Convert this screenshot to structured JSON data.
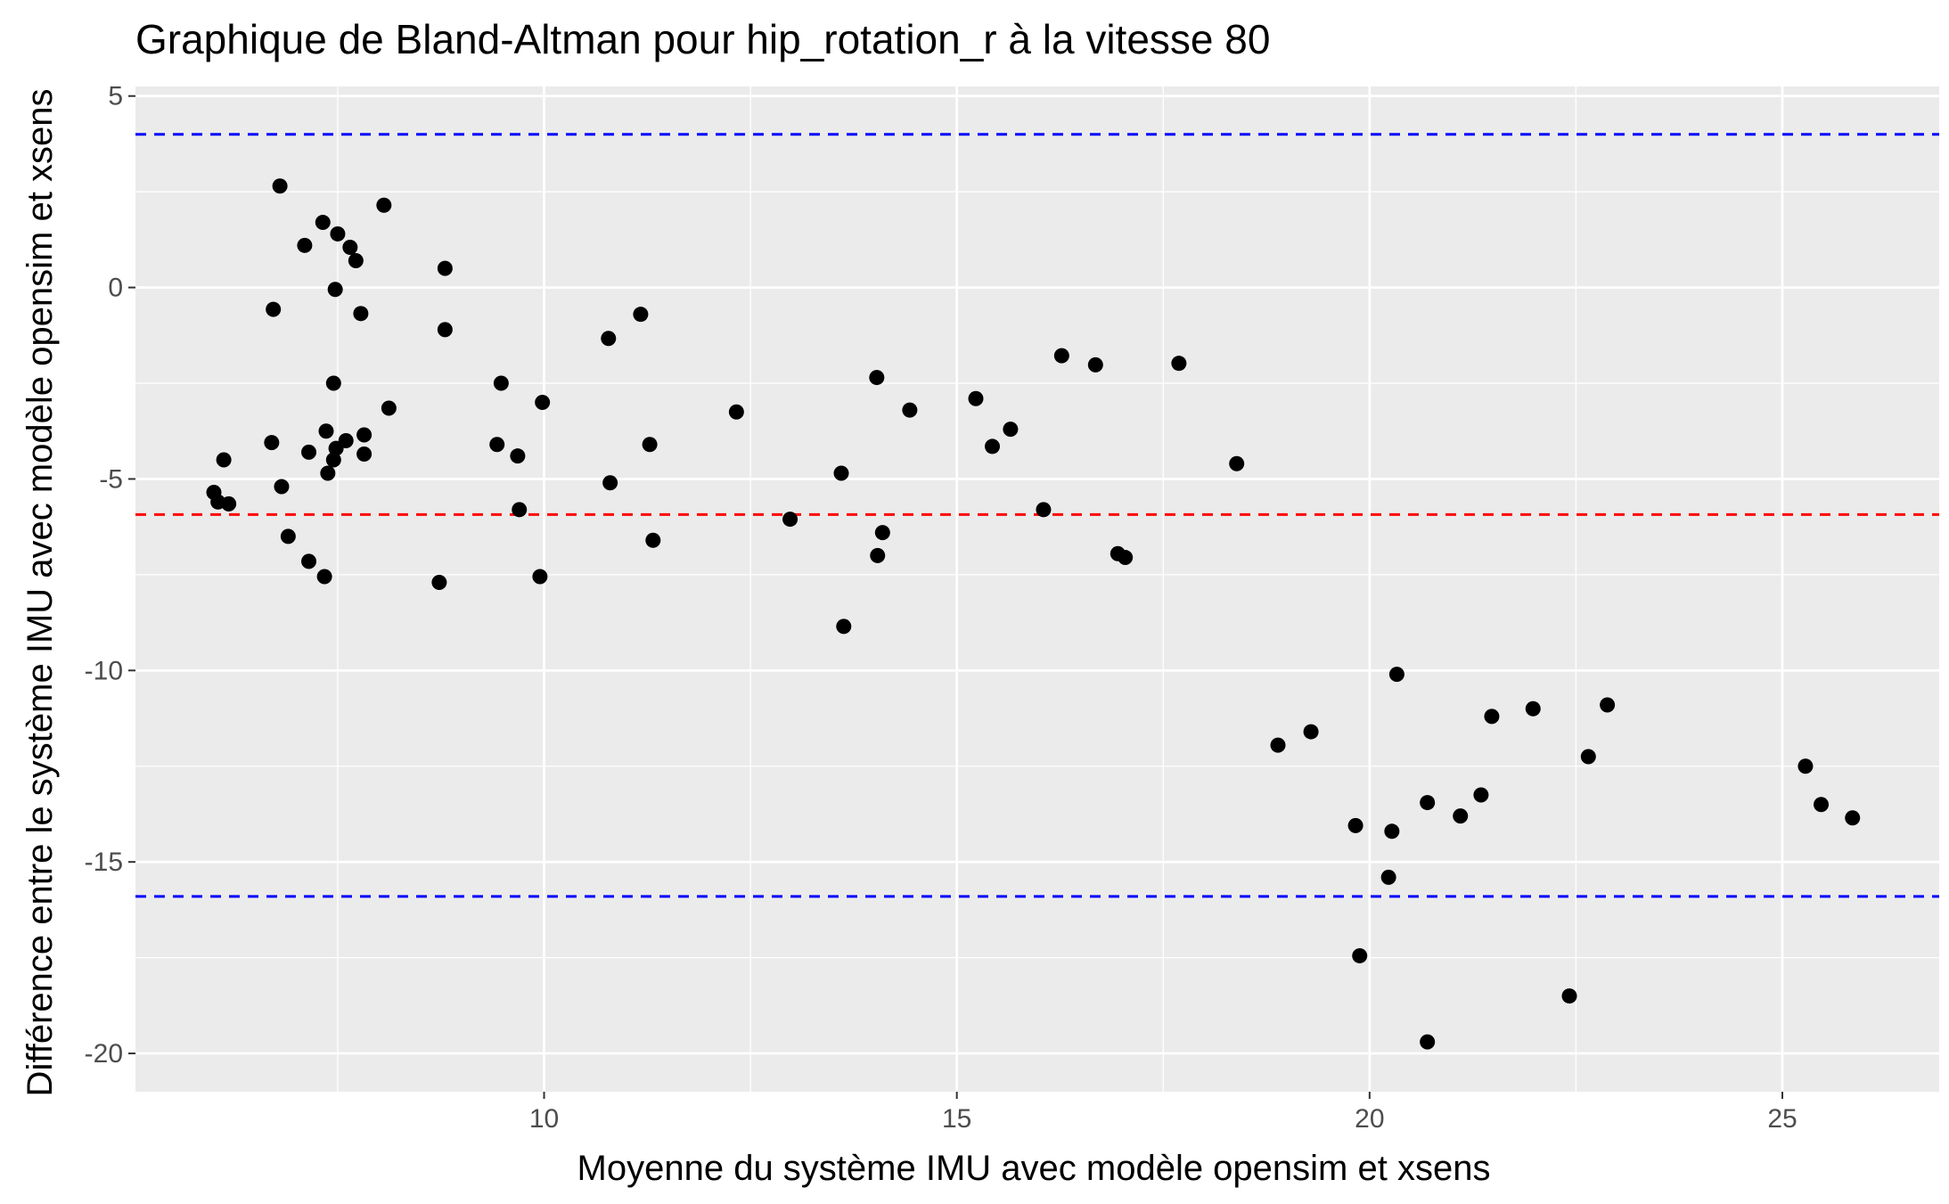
{
  "chart_data": {
    "type": "scatter",
    "title": "Graphique de Bland-Altman pour hip_rotation_r à la vitesse 80",
    "xlabel": "Moyenne du système IMU avec modèle opensim et xsens",
    "ylabel": "Différence entre le système IMU avec modèle opensim et xsens",
    "xlim": [
      5.05,
      26.9
    ],
    "ylim": [
      -21.0,
      5.25
    ],
    "x_ticks": [
      10,
      15,
      20,
      25
    ],
    "x_tick_labels": [
      "10",
      "15",
      "20",
      "25"
    ],
    "y_ticks": [
      5,
      0,
      -5,
      -10,
      -15,
      -20
    ],
    "y_tick_labels": [
      "5",
      "0",
      "-5",
      "-10",
      "-15",
      "-20"
    ],
    "grid": true,
    "colors": {
      "panel": "#ebebeb",
      "grid": "#ffffff",
      "points": "#000000",
      "mean_line": "#ff0000",
      "loa_line": "#0000ff"
    },
    "reference_lines": [
      {
        "kind": "upper-limit",
        "y": 4.0,
        "color": "#0000ff"
      },
      {
        "kind": "mean",
        "y": -5.93,
        "color": "#ff0000"
      },
      {
        "kind": "lower-limit",
        "y": -15.9,
        "color": "#0000ff"
      }
    ],
    "points": [
      {
        "x": 6.0,
        "y": -5.35
      },
      {
        "x": 6.05,
        "y": -5.6
      },
      {
        "x": 6.12,
        "y": -4.5
      },
      {
        "x": 6.18,
        "y": -5.65
      },
      {
        "x": 6.7,
        "y": -4.05
      },
      {
        "x": 6.72,
        "y": -0.57
      },
      {
        "x": 6.8,
        "y": 2.65
      },
      {
        "x": 6.82,
        "y": -5.2
      },
      {
        "x": 6.9,
        "y": -6.5
      },
      {
        "x": 7.1,
        "y": 1.1
      },
      {
        "x": 7.15,
        "y": -7.15
      },
      {
        "x": 7.15,
        "y": -4.3
      },
      {
        "x": 7.32,
        "y": 1.7
      },
      {
        "x": 7.34,
        "y": -7.55
      },
      {
        "x": 7.36,
        "y": -3.75
      },
      {
        "x": 7.38,
        "y": -4.85
      },
      {
        "x": 7.45,
        "y": -2.5
      },
      {
        "x": 7.45,
        "y": -4.5
      },
      {
        "x": 7.47,
        "y": -0.05
      },
      {
        "x": 7.48,
        "y": -4.2
      },
      {
        "x": 7.5,
        "y": 1.4
      },
      {
        "x": 7.6,
        "y": -4.0
      },
      {
        "x": 7.65,
        "y": 1.05
      },
      {
        "x": 7.72,
        "y": 0.7
      },
      {
        "x": 7.78,
        "y": -0.68
      },
      {
        "x": 7.82,
        "y": -3.85
      },
      {
        "x": 7.82,
        "y": -4.35
      },
      {
        "x": 8.06,
        "y": 2.15
      },
      {
        "x": 8.12,
        "y": -3.15
      },
      {
        "x": 8.73,
        "y": -7.7
      },
      {
        "x": 8.8,
        "y": 0.5
      },
      {
        "x": 8.8,
        "y": -1.1
      },
      {
        "x": 9.43,
        "y": -4.1
      },
      {
        "x": 9.48,
        "y": -2.5
      },
      {
        "x": 9.68,
        "y": -4.4
      },
      {
        "x": 9.7,
        "y": -5.8
      },
      {
        "x": 9.95,
        "y": -7.55
      },
      {
        "x": 9.98,
        "y": -3.0
      },
      {
        "x": 10.78,
        "y": -1.33
      },
      {
        "x": 10.8,
        "y": -5.1
      },
      {
        "x": 11.17,
        "y": -0.7
      },
      {
        "x": 11.28,
        "y": -4.1
      },
      {
        "x": 11.32,
        "y": -6.6
      },
      {
        "x": 12.33,
        "y": -3.25
      },
      {
        "x": 12.98,
        "y": -6.05
      },
      {
        "x": 13.6,
        "y": -4.85
      },
      {
        "x": 13.63,
        "y": -8.85
      },
      {
        "x": 14.03,
        "y": -2.35
      },
      {
        "x": 14.04,
        "y": -7.0
      },
      {
        "x": 14.1,
        "y": -6.4
      },
      {
        "x": 14.43,
        "y": -3.2
      },
      {
        "x": 15.23,
        "y": -2.9
      },
      {
        "x": 15.43,
        "y": -4.15
      },
      {
        "x": 15.65,
        "y": -3.7
      },
      {
        "x": 16.05,
        "y": -5.8
      },
      {
        "x": 16.27,
        "y": -1.78
      },
      {
        "x": 16.68,
        "y": -2.02
      },
      {
        "x": 16.95,
        "y": -6.95
      },
      {
        "x": 17.04,
        "y": -7.05
      },
      {
        "x": 17.69,
        "y": -1.98
      },
      {
        "x": 18.39,
        "y": -4.6
      },
      {
        "x": 18.89,
        "y": -11.95
      },
      {
        "x": 19.29,
        "y": -11.6
      },
      {
        "x": 19.83,
        "y": -14.05
      },
      {
        "x": 19.88,
        "y": -17.45
      },
      {
        "x": 20.23,
        "y": -15.4
      },
      {
        "x": 20.27,
        "y": -14.2
      },
      {
        "x": 20.33,
        "y": -10.1
      },
      {
        "x": 20.7,
        "y": -13.45
      },
      {
        "x": 20.7,
        "y": -19.7
      },
      {
        "x": 21.1,
        "y": -13.8
      },
      {
        "x": 21.35,
        "y": -13.25
      },
      {
        "x": 21.48,
        "y": -11.2
      },
      {
        "x": 21.98,
        "y": -11.0
      },
      {
        "x": 22.42,
        "y": -18.5
      },
      {
        "x": 22.65,
        "y": -12.25
      },
      {
        "x": 22.88,
        "y": -10.9
      },
      {
        "x": 25.28,
        "y": -12.5
      },
      {
        "x": 25.47,
        "y": -13.5
      },
      {
        "x": 25.85,
        "y": -13.85
      }
    ]
  }
}
